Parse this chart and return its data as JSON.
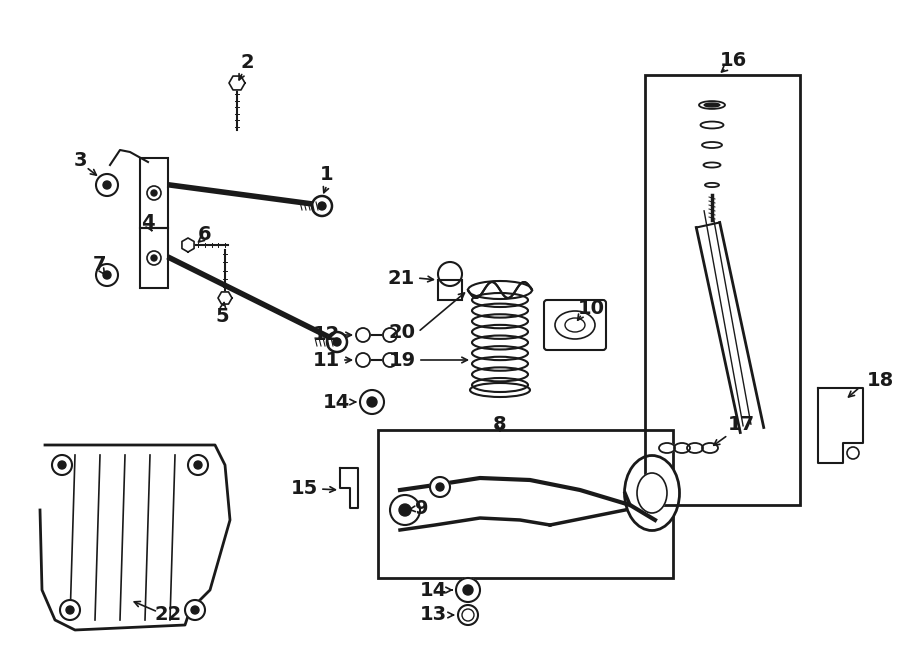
{
  "bg_color": "#ffffff",
  "lc": "#1a1a1a",
  "fig_w": 9.0,
  "fig_h": 6.61,
  "dpi": 100,
  "xlim": [
    0,
    900
  ],
  "ylim": [
    0,
    661
  ]
}
